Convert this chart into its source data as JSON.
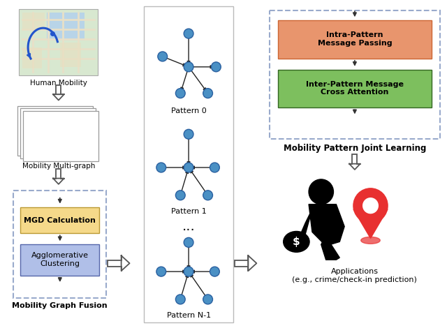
{
  "bg_color": "#ffffff",
  "map_label": "Human Mobility",
  "multigraph_label": "Mobility Multi-graph",
  "mgd_label": "MGD Calculation",
  "mgd_color": "#f5d98a",
  "agg_label": "Agglomerative\nClustering",
  "agg_color": "#b0bfe8",
  "fusion_label": "Mobility Graph Fusion",
  "pattern0_label": "Pattern 0",
  "pattern1_label": "Pattern 1",
  "patternN_label": "Pattern N-1",
  "dots_label": "...",
  "intra_label": "Intra-Pattern\nMessage Passing",
  "intra_color": "#e8956d",
  "inter_label": "Inter-Pattern Message\nCross Attention",
  "inter_color": "#7dbf5e",
  "joint_label": "Mobility Pattern Joint Learning",
  "app_label": "Applications\n(e.g., crime/check-in prediction)",
  "node_color": "#4a90c4",
  "node_edge_color": "#2a60a0",
  "arrow_color": "#222222",
  "dashed_color": "#99aacc"
}
